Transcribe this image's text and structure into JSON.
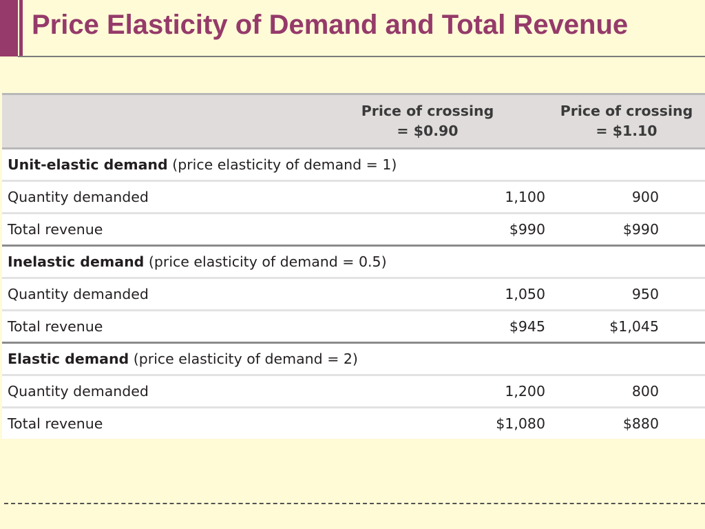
{
  "slide": {
    "title": "Price Elasticity of Demand and Total Revenue"
  },
  "table": {
    "headers": {
      "col1_line1": "Price of crossing",
      "col1_line2": "= $0.90",
      "col2_line1": "Price of crossing",
      "col2_line2": "= $1.10"
    },
    "groups": [
      {
        "name": "Unit-elastic demand",
        "detail": "(price elasticity of demand = 1)",
        "rows": [
          {
            "label": "Quantity demanded",
            "v1": "1,100",
            "v2": "900"
          },
          {
            "label": "Total revenue",
            "v1": "$990",
            "v2": "$990"
          }
        ]
      },
      {
        "name": "Inelastic demand",
        "detail": "(price elasticity of demand = 0.5)",
        "rows": [
          {
            "label": "Quantity demanded",
            "v1": "1,050",
            "v2": "950"
          },
          {
            "label": "Total revenue",
            "v1": "$945",
            "v2": "$1,045"
          }
        ]
      },
      {
        "name": "Elastic demand",
        "detail": "(price elasticity of demand = 2)",
        "rows": [
          {
            "label": "Quantity demanded",
            "v1": "1,200",
            "v2": "800"
          },
          {
            "label": "Total revenue",
            "v1": "$1,080",
            "v2": "$880"
          }
        ]
      }
    ]
  },
  "colors": {
    "title": "#953a6a",
    "background": "#fefbd6",
    "header_bg": "#e0dcdb"
  }
}
